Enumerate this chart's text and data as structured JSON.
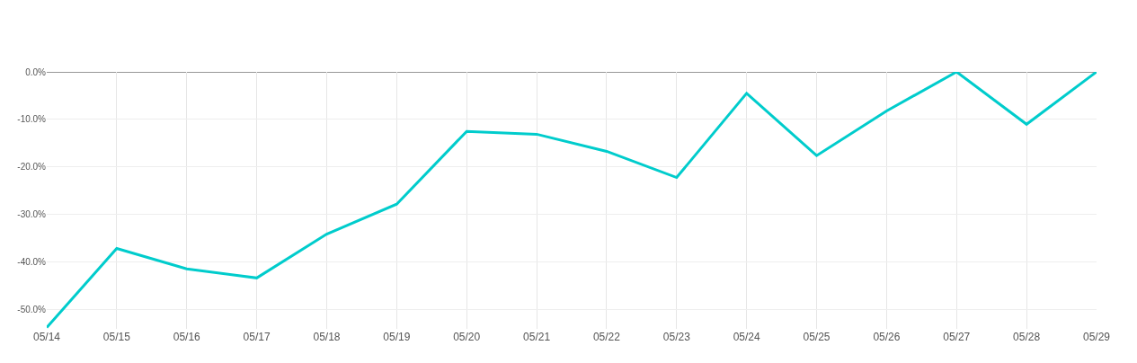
{
  "chart_data": {
    "type": "line",
    "categories": [
      "05/14",
      "05/15",
      "05/16",
      "05/17",
      "05/18",
      "05/19",
      "05/20",
      "05/21",
      "05/22",
      "05/23",
      "05/24",
      "05/25",
      "05/26",
      "05/27",
      "05/28",
      "05/29"
    ],
    "series": [
      {
        "color": "#00cccc",
        "values": [
          -53.7,
          -37.1,
          -41.4,
          -43.3,
          -34.1,
          -27.8,
          -12.5,
          -13.1,
          -16.7,
          -22.2,
          -4.5,
          -17.6,
          -8.2,
          0,
          -11.0,
          0
        ]
      }
    ],
    "ylim": [
      -54,
      0
    ],
    "yticks": [
      {
        "value": 0,
        "label": "0.0%"
      },
      {
        "value": -10,
        "label": "-10.0%"
      },
      {
        "value": -20,
        "label": "-20.0%"
      },
      {
        "value": -30,
        "label": "-30.0%"
      },
      {
        "value": -40,
        "label": "-40.0%"
      },
      {
        "value": -50,
        "label": "-50.0%"
      }
    ],
    "ref_lines": [
      {
        "axis": "y",
        "value": 0,
        "color": "#333333"
      }
    ],
    "grid": true,
    "marker": "none",
    "line_style": "solid"
  }
}
